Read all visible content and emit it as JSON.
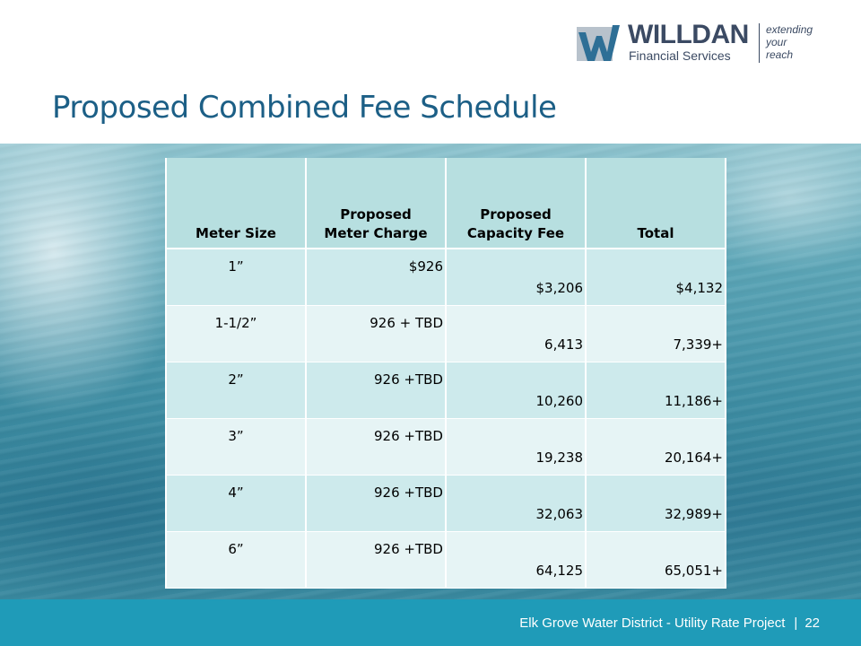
{
  "logo": {
    "name": "WILLDAN",
    "subtitle": "Financial Services",
    "tagline": [
      "extending",
      "your",
      "reach"
    ]
  },
  "title": "Proposed Combined Fee Schedule",
  "table": {
    "headers": [
      "Meter Size",
      "Proposed Meter Charge",
      "Proposed Capacity Fee",
      "Total"
    ],
    "header_lines": [
      [
        "Meter Size"
      ],
      [
        "Proposed",
        "Meter Charge"
      ],
      [
        "Proposed",
        "Capacity Fee"
      ],
      [
        "Total"
      ]
    ],
    "rows": [
      [
        "1”",
        "$926",
        "$3,206",
        "$4,132"
      ],
      [
        "1-1/2”",
        "926 + TBD",
        "6,413",
        "7,339+"
      ],
      [
        "2”",
        "926 +TBD",
        "10,260",
        "11,186+"
      ],
      [
        "3”",
        "926 +TBD",
        "19,238",
        "20,164+"
      ],
      [
        "4”",
        "926 +TBD",
        "32,063",
        "32,989+"
      ],
      [
        "6”",
        "926 +TBD",
        "64,125",
        "65,051+"
      ]
    ]
  },
  "footer": {
    "text": "Elk Grove Water District  -  Utility Rate Project",
    "separator": "|",
    "page": "22"
  },
  "colors": {
    "title": "#1c5f86",
    "header_fill": "#b7dfe0",
    "row_fill_a": "#cdeaec",
    "row_fill_b": "#e6f4f5",
    "footer_bar": "#1f9bb8",
    "logo_text": "#3b4a63"
  }
}
